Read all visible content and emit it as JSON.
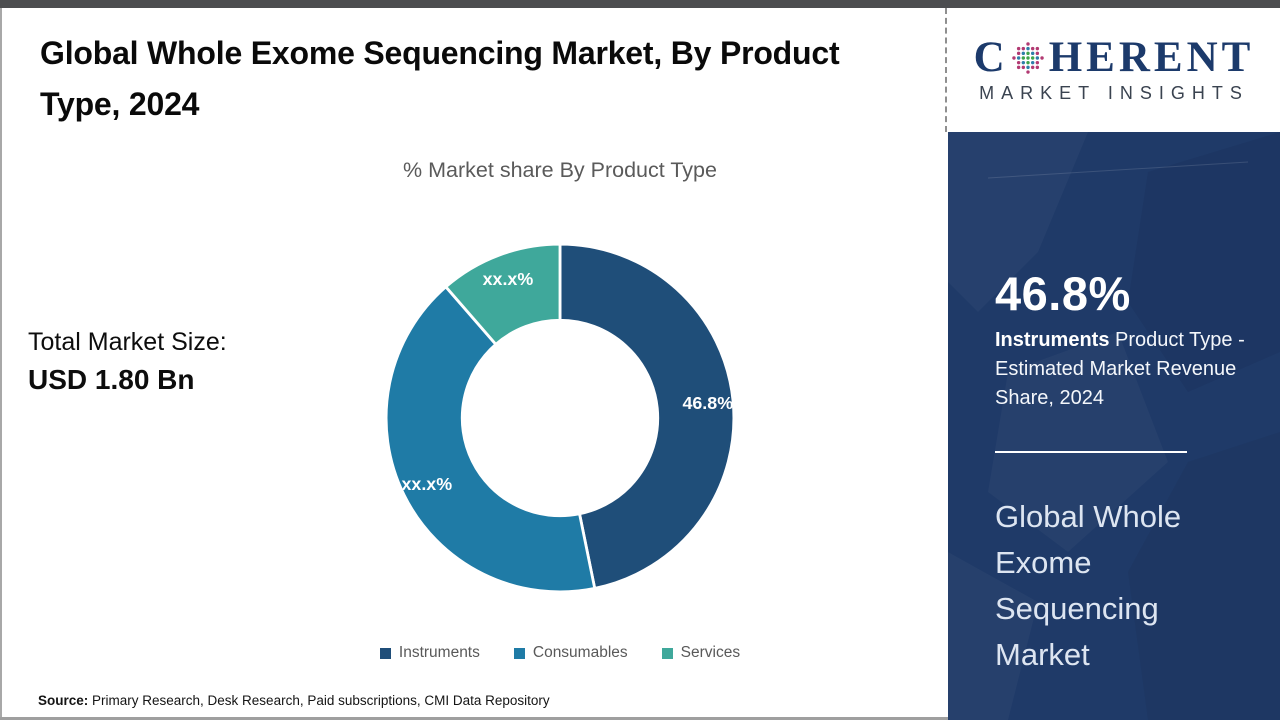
{
  "header": {
    "title": "Global Whole Exome Sequencing Market, By Product Type, 2024"
  },
  "chart": {
    "subtitle": "% Market share By Product Type",
    "total_label": "Total Market Size:",
    "total_value": "USD 1.80 Bn"
  },
  "chart_data": {
    "type": "pie",
    "donut": true,
    "title": "% Market share By Product Type",
    "legend_position": "bottom",
    "segments": [
      {
        "name": "Instruments",
        "value": 46.8,
        "label": "46.8%",
        "color": "#1f4e79"
      },
      {
        "name": "Consumables",
        "value": 41.8,
        "label": "xx.x%",
        "color": "#1f7ba6"
      },
      {
        "name": "Services",
        "value": 11.4,
        "label": "xx.x%",
        "color": "#3fa89b"
      }
    ]
  },
  "source": {
    "label": "Source:",
    "text": " Primary Research, Desk Research, Paid subscriptions, CMI Data Repository"
  },
  "logo": {
    "word_c": "C",
    "word_rest": "HERENT",
    "tagline": "MARKET INSIGHTS"
  },
  "panel": {
    "stat_value": "46.8%",
    "desc_bold": "Instruments",
    "desc_rest": " Product Type - Estimated Market Revenue Share, 2024",
    "market_name": "Global Whole Exome Sequencing Market"
  }
}
